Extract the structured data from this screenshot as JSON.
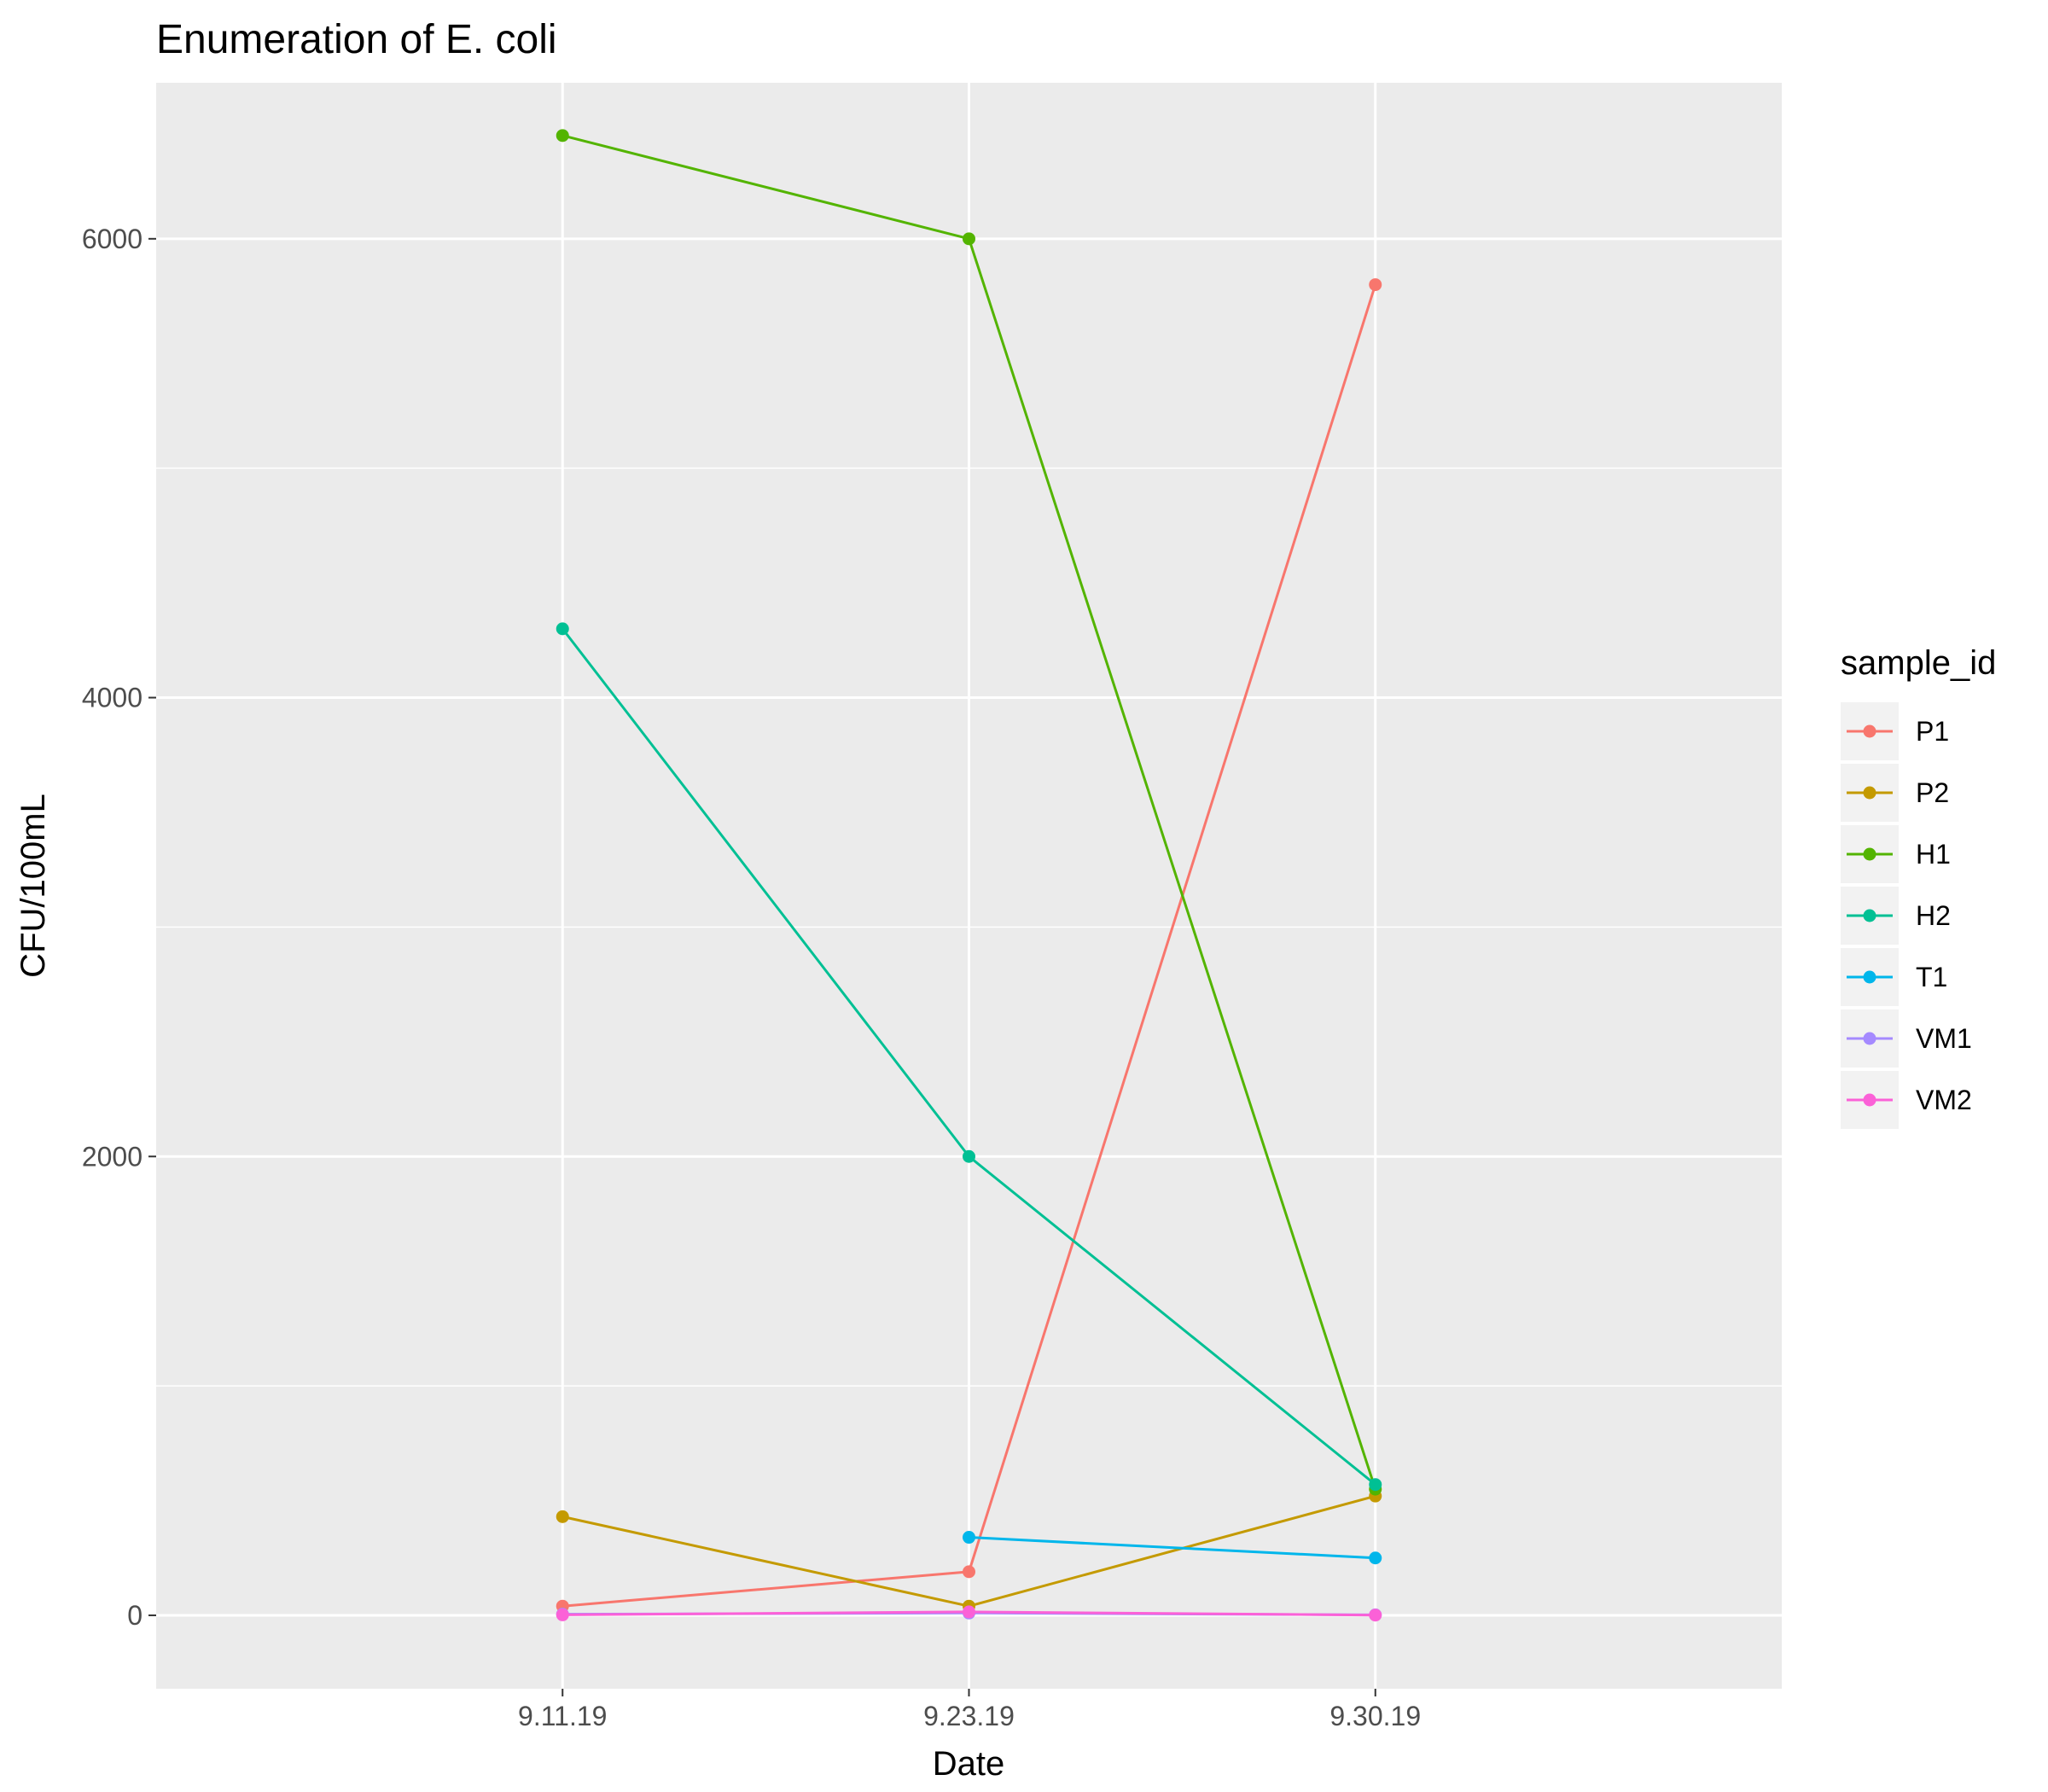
{
  "chart_data": {
    "type": "line",
    "title": "Enumeration of E. coli",
    "xlabel": "Date",
    "ylabel": "CFU/100mL",
    "categories": [
      "9.11.19",
      "9.23.19",
      "9.30.19"
    ],
    "ylim": [
      -320,
      6680
    ],
    "yticks": [
      0,
      2000,
      4000,
      6000
    ],
    "y_minor_ticks": [
      1000,
      3000,
      5000
    ],
    "grid": true,
    "legend": {
      "title": "sample_id",
      "placement": "right"
    },
    "series": [
      {
        "name": "P1",
        "color": "#F8766D",
        "values": [
          40,
          190,
          5800
        ]
      },
      {
        "name": "P2",
        "color": "#C49A00",
        "values": [
          430,
          40,
          520
        ]
      },
      {
        "name": "H1",
        "color": "#53B400",
        "values": [
          6450,
          6000,
          550
        ]
      },
      {
        "name": "H2",
        "color": "#00C094",
        "values": [
          4300,
          2000,
          570
        ]
      },
      {
        "name": "T1",
        "color": "#00B6EB",
        "values": [
          null,
          340,
          250
        ]
      },
      {
        "name": "VM1",
        "color": "#A58AFF",
        "values": [
          5,
          10,
          2
        ]
      },
      {
        "name": "VM2",
        "color": "#FB61D7",
        "values": [
          2,
          15,
          1
        ]
      }
    ]
  }
}
